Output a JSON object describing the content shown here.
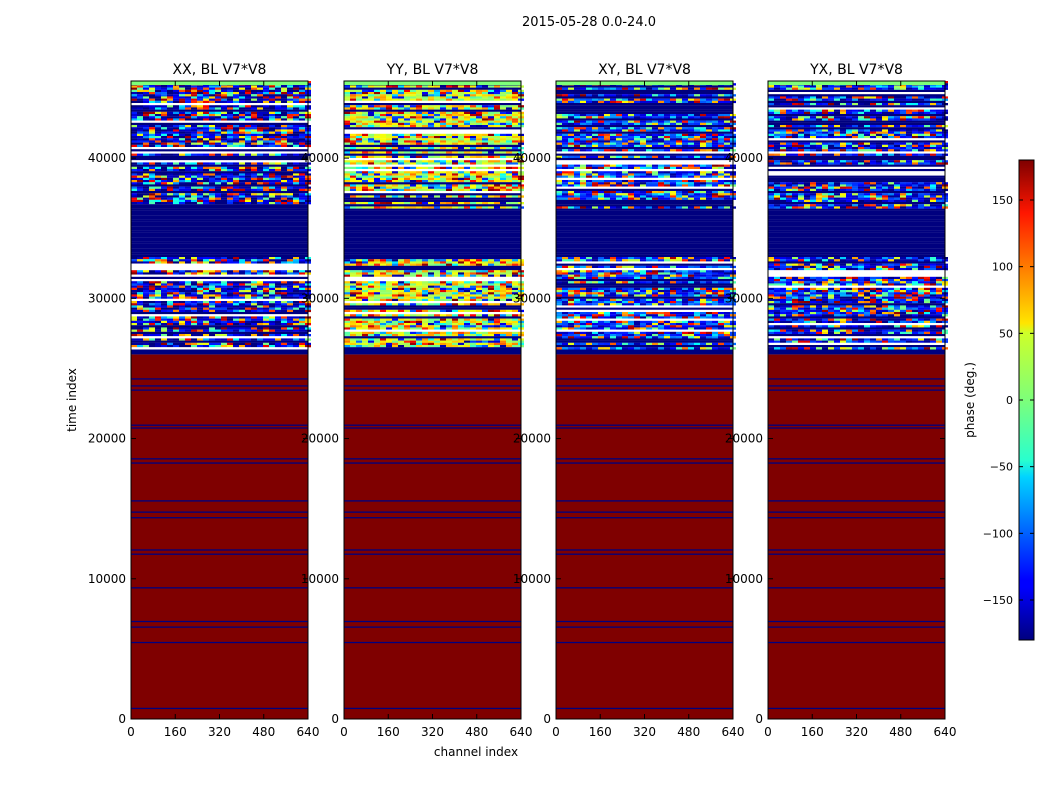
{
  "figure": {
    "title": "2015-05-28 0.0-24.0",
    "ylabel": "time index",
    "xlabel": "channel index"
  },
  "chart_data": {
    "type": "heatmap",
    "title": "2015-05-28 0.0-24.0",
    "xlabel": "channel index",
    "ylabel": "time index",
    "xlim": [
      0,
      640
    ],
    "ylim": [
      0,
      45500
    ],
    "xticks": [
      0,
      160,
      320,
      480,
      640
    ],
    "yticks": [
      0,
      10000,
      20000,
      30000,
      40000
    ],
    "panels": [
      {
        "name": "XX, BL V7*V8"
      },
      {
        "name": "YY, BL V7*V8"
      },
      {
        "name": "XY, BL V7*V8"
      },
      {
        "name": "YX, BL V7*V8"
      }
    ],
    "colorbar": {
      "label": "phase (deg.)",
      "range": [
        -180,
        180
      ],
      "ticks": [
        -150,
        -100,
        -50,
        0,
        50,
        100,
        150
      ],
      "colormap": "jet"
    },
    "regions": {
      "saturated_max_phase_below_index": 26000,
      "noisy_phase_above_index": 26500,
      "blank_band_index_range": [
        33000,
        36500
      ]
    }
  }
}
